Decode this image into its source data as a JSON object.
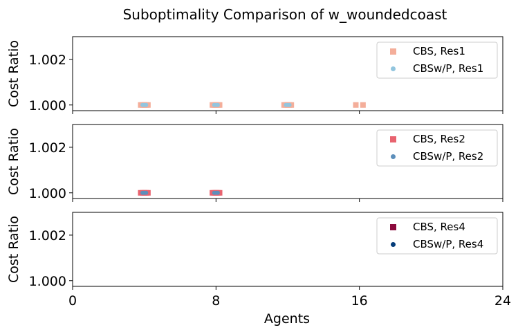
{
  "chart_data": {
    "type": "scatter",
    "title": "Suboptimality Comparison of w_woundedcoast",
    "xlabel": "Agents",
    "ylabel": "Cost Ratio",
    "xlim": [
      0,
      24
    ],
    "ylim": [
      0.99975,
      1.003
    ],
    "xticks": [
      "0",
      "8",
      "16",
      "24"
    ],
    "yticks": [
      "1.000",
      "1.002"
    ],
    "grid": false,
    "legend_position": "top-right",
    "panels": [
      {
        "series": [
          {
            "name": "CBS, Res1",
            "marker": "square",
            "color": "#f4ae9a",
            "points": [
              [
                3.8,
                1.0
              ],
              [
                3.9,
                1.0
              ],
              [
                4.0,
                1.0
              ],
              [
                4.1,
                1.0
              ],
              [
                4.2,
                1.0
              ],
              [
                7.8,
                1.0
              ],
              [
                7.9,
                1.0
              ],
              [
                8.0,
                1.0
              ],
              [
                8.1,
                1.0
              ],
              [
                8.2,
                1.0
              ],
              [
                11.8,
                1.0
              ],
              [
                11.9,
                1.0
              ],
              [
                12.0,
                1.0
              ],
              [
                12.1,
                1.0
              ],
              [
                12.2,
                1.0
              ],
              [
                15.8,
                1.0
              ],
              [
                16.2,
                1.0
              ]
            ]
          },
          {
            "name": "CBSw/P, Res1",
            "marker": "circle",
            "color": "#92c5de",
            "points": [
              [
                3.9,
                1.0
              ],
              [
                4.0,
                1.0
              ],
              [
                4.1,
                1.0
              ],
              [
                7.9,
                1.0
              ],
              [
                8.0,
                1.0
              ],
              [
                8.1,
                1.0
              ],
              [
                11.9,
                1.0
              ],
              [
                12.0,
                1.0
              ],
              [
                12.1,
                1.0
              ]
            ]
          }
        ]
      },
      {
        "series": [
          {
            "name": "CBS, Res2",
            "marker": "square",
            "color": "#e8636f",
            "points": [
              [
                3.8,
                1.0
              ],
              [
                3.9,
                1.0
              ],
              [
                4.0,
                1.0
              ],
              [
                4.1,
                1.0
              ],
              [
                4.2,
                1.0
              ],
              [
                7.8,
                1.0
              ],
              [
                7.9,
                1.0
              ],
              [
                8.0,
                1.0
              ],
              [
                8.1,
                1.0
              ],
              [
                8.2,
                1.0
              ]
            ]
          },
          {
            "name": "CBSw/P, Res2",
            "marker": "circle",
            "color": "#5d8fbb",
            "points": [
              [
                3.9,
                1.0
              ],
              [
                4.0,
                1.0
              ],
              [
                4.1,
                1.0
              ],
              [
                7.9,
                1.0
              ],
              [
                8.0,
                1.0
              ],
              [
                8.1,
                1.0
              ]
            ]
          }
        ]
      },
      {
        "series": [
          {
            "name": "CBS, Res4",
            "marker": "square",
            "color": "#8b0a3c",
            "points": []
          },
          {
            "name": "CBSw/P, Res4",
            "marker": "circle",
            "color": "#053d7a",
            "points": []
          }
        ]
      }
    ]
  }
}
